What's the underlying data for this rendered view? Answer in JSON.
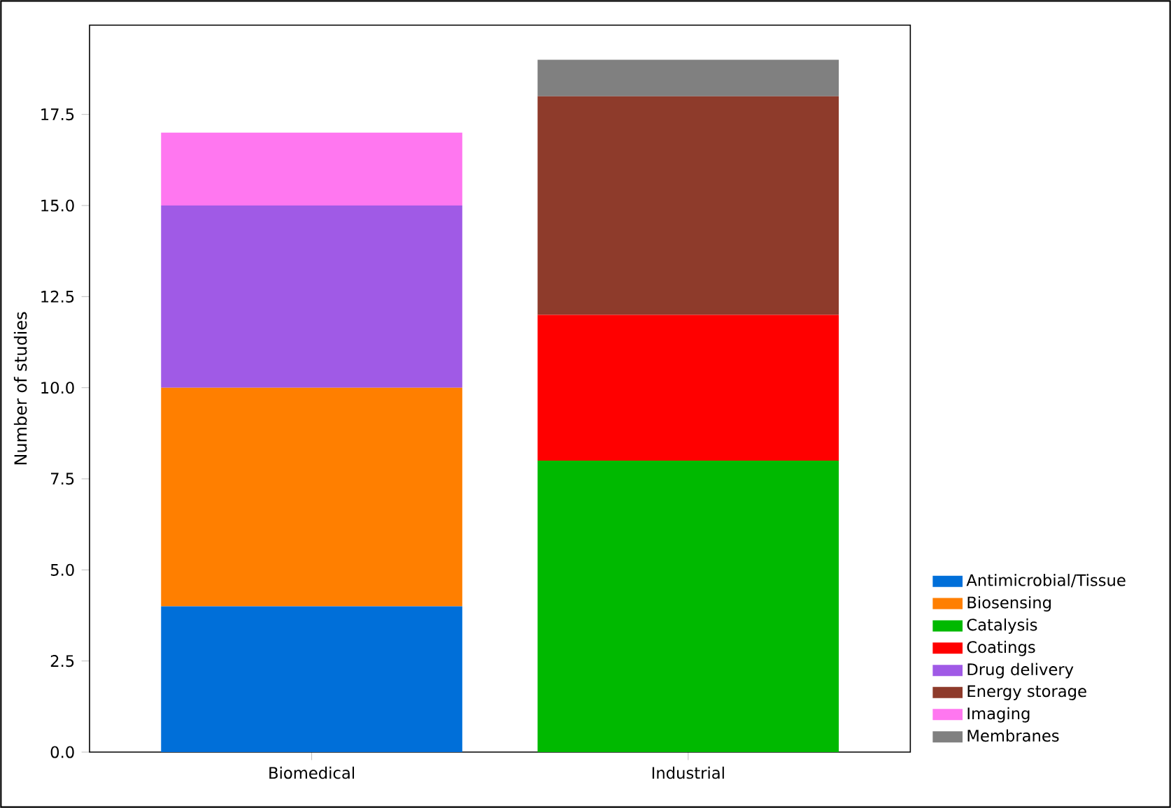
{
  "chart_data": {
    "type": "bar",
    "stacked": true,
    "ylabel": "Number of studies",
    "categories": [
      "Biomedical",
      "Industrial"
    ],
    "series": [
      {
        "name": "Antimicrobial/Tissue",
        "color": "#006fd9",
        "values": [
          4,
          0
        ]
      },
      {
        "name": "Biosensing",
        "color": "#ff7f00",
        "values": [
          6,
          0
        ]
      },
      {
        "name": "Catalysis",
        "color": "#00b900",
        "values": [
          0,
          8
        ]
      },
      {
        "name": "Coatings",
        "color": "#ff0000",
        "values": [
          0,
          4
        ]
      },
      {
        "name": "Drug delivery",
        "color": "#a05ae6",
        "values": [
          5,
          0
        ]
      },
      {
        "name": "Energy storage",
        "color": "#8e3b2b",
        "values": [
          0,
          6
        ]
      },
      {
        "name": "Imaging",
        "color": "#ff77f0",
        "values": [
          2,
          0
        ]
      },
      {
        "name": "Membranes",
        "color": "#808080",
        "values": [
          0,
          1
        ]
      }
    ],
    "ylim": [
      0,
      19.95
    ],
    "yticks": [
      {
        "value": 0,
        "label": "0.0"
      },
      {
        "value": 2.5,
        "label": "2.5"
      },
      {
        "value": 5,
        "label": "5.0"
      },
      {
        "value": 7.5,
        "label": "7.5"
      },
      {
        "value": 10,
        "label": "10.0"
      },
      {
        "value": 12.5,
        "label": "12.5"
      },
      {
        "value": 15,
        "label": "15.0"
      },
      {
        "value": 17.5,
        "label": "17.5"
      }
    ],
    "legend": "right",
    "grid": false
  }
}
